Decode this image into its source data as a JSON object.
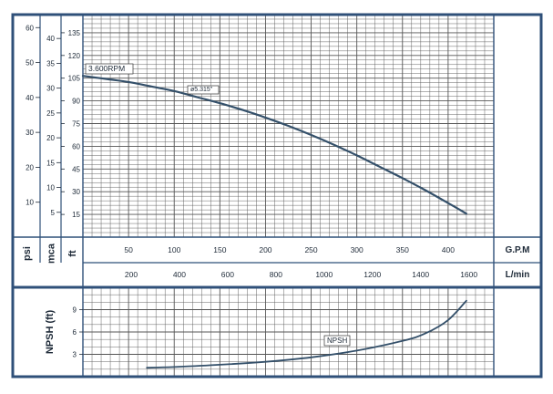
{
  "chart_data": [
    {
      "type": "line",
      "title": "",
      "xlabel": "G.P.M",
      "xlabel_secondary": "L/min",
      "ylabel": "ft",
      "ylabel_secondary": [
        "psi",
        "mca"
      ],
      "x_ticks_gpm": [
        "50",
        "100",
        "150",
        "200",
        "250",
        "300",
        "350",
        "400"
      ],
      "x_ticks_lmin": [
        "200",
        "400",
        "600",
        "800",
        "1000",
        "1200",
        "1400",
        "1600"
      ],
      "ft_ticks": [
        "15",
        "30",
        "45",
        "60",
        "75",
        "90",
        "105",
        "120",
        "135"
      ],
      "mca_ticks": [
        "5",
        "10",
        "15",
        "20",
        "25",
        "30",
        "35",
        "40"
      ],
      "psi_ticks": [
        "10",
        "20",
        "30",
        "40",
        "50",
        "60"
      ],
      "xlim": [
        0,
        450
      ],
      "ylim": [
        0,
        147
      ],
      "grid": true,
      "series": [
        {
          "name": "3.600RPM",
          "impeller_label": "ø5.315\"",
          "x": [
            0,
            25,
            50,
            75,
            100,
            125,
            150,
            175,
            200,
            225,
            250,
            275,
            300,
            325,
            350,
            375,
            400,
            420
          ],
          "values": [
            106.5,
            104.5,
            102.5,
            99.5,
            96.5,
            92.5,
            88.5,
            84,
            79,
            73.5,
            67.5,
            61,
            54,
            46.5,
            39,
            31,
            22.5,
            15.5
          ]
        }
      ]
    },
    {
      "type": "line",
      "title": "",
      "ylabel": "NPSH (ft)",
      "y_ticks": [
        "3",
        "6",
        "9"
      ],
      "xlim": [
        0,
        450
      ],
      "ylim": [
        0,
        12
      ],
      "grid": true,
      "series": [
        {
          "name": "NPSH",
          "x": [
            70,
            100,
            150,
            200,
            250,
            300,
            350,
            375,
            400,
            420
          ],
          "values": [
            1.2,
            1.3,
            1.6,
            2.0,
            2.6,
            3.5,
            4.8,
            5.8,
            7.6,
            10.2
          ]
        }
      ]
    }
  ],
  "colors": {
    "frame": "#2f5079",
    "grid": "#555555",
    "curve": "#34506a",
    "background": "#ffffff"
  }
}
